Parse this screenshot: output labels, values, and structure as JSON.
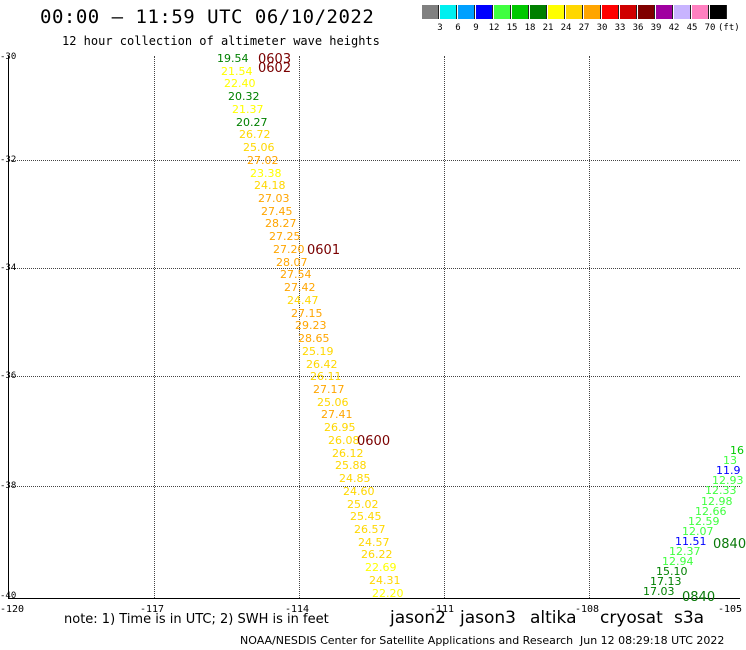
{
  "header": {
    "title": "00:00 – 11:59 UTC 06/10/2022",
    "subtitle": "12 hour collection of altimeter wave heights"
  },
  "color_scale": {
    "colors": [
      "#808080",
      "#00f0f0",
      "#00a0ff",
      "#0000ff",
      "#40ff40",
      "#00c800",
      "#008000",
      "#ffff00",
      "#ffd700",
      "#ffa500",
      "#ff0000",
      "#d00000",
      "#800000",
      "#a000a0",
      "#c8b4ff",
      "#ff80c0",
      "#000000"
    ],
    "labels": [
      "3",
      "6",
      "9",
      "12",
      "15",
      "18",
      "21",
      "24",
      "27",
      "30",
      "33",
      "36",
      "39",
      "42",
      "45",
      "70",
      "(ft)"
    ]
  },
  "axes": {
    "y_ticks": [
      "-30",
      "-32",
      "-34",
      "-36",
      "-38",
      "-40"
    ],
    "x_ticks": [
      "-120",
      "-117",
      "-114",
      "-111",
      "-108",
      "-105"
    ]
  },
  "track_labels": [
    {
      "text": "0603",
      "color": "#7a0000"
    },
    {
      "text": "0602",
      "color": "#7a0000"
    },
    {
      "text": "0601",
      "color": "#7a0000"
    },
    {
      "text": "0600",
      "color": "#7a0000"
    },
    {
      "text": "0840",
      "color": "#0a7a0a"
    },
    {
      "text": "0840",
      "color": "#0a7a0a"
    }
  ],
  "points_main": [
    {
      "v": "19.54",
      "c": "#008000"
    },
    {
      "v": "21.54",
      "c": "#ffff00"
    },
    {
      "v": "22.40",
      "c": "#ffff00"
    },
    {
      "v": "20.32",
      "c": "#008000"
    },
    {
      "v": "21.37",
      "c": "#ffff00"
    },
    {
      "v": "20.27",
      "c": "#008000"
    },
    {
      "v": "26.72",
      "c": "#ffd700"
    },
    {
      "v": "25.06",
      "c": "#ffd700"
    },
    {
      "v": "27.02",
      "c": "#ffa500"
    },
    {
      "v": "23.38",
      "c": "#ffff00"
    },
    {
      "v": "24.18",
      "c": "#ffd700"
    },
    {
      "v": "27.03",
      "c": "#ffa500"
    },
    {
      "v": "27.45",
      "c": "#ffa500"
    },
    {
      "v": "28.27",
      "c": "#ffa500"
    },
    {
      "v": "27.25",
      "c": "#ffa500"
    },
    {
      "v": "27.20",
      "c": "#ffa500"
    },
    {
      "v": "28.07",
      "c": "#ffa500"
    },
    {
      "v": "27.54",
      "c": "#ffa500"
    },
    {
      "v": "27.42",
      "c": "#ffa500"
    },
    {
      "v": "24.47",
      "c": "#ffd700"
    },
    {
      "v": "27.15",
      "c": "#ffa500"
    },
    {
      "v": "29.23",
      "c": "#ffa500"
    },
    {
      "v": "28.65",
      "c": "#ffa500"
    },
    {
      "v": "25.19",
      "c": "#ffd700"
    },
    {
      "v": "26.42",
      "c": "#ffd700"
    },
    {
      "v": "26.11",
      "c": "#ffd700"
    },
    {
      "v": "27.17",
      "c": "#ffa500"
    },
    {
      "v": "25.06",
      "c": "#ffd700"
    },
    {
      "v": "27.41",
      "c": "#ffa500"
    },
    {
      "v": "26.95",
      "c": "#ffd700"
    },
    {
      "v": "26.08",
      "c": "#ffd700"
    },
    {
      "v": "26.12",
      "c": "#ffd700"
    },
    {
      "v": "25.88",
      "c": "#ffd700"
    },
    {
      "v": "24.85",
      "c": "#ffd700"
    },
    {
      "v": "24.60",
      "c": "#ffd700"
    },
    {
      "v": "25.02",
      "c": "#ffd700"
    },
    {
      "v": "25.45",
      "c": "#ffd700"
    },
    {
      "v": "26.57",
      "c": "#ffd700"
    },
    {
      "v": "24.57",
      "c": "#ffd700"
    },
    {
      "v": "26.22",
      "c": "#ffd700"
    },
    {
      "v": "22.69",
      "c": "#ffff00"
    },
    {
      "v": "24.31",
      "c": "#ffd700"
    },
    {
      "v": "22.20",
      "c": "#ffff00"
    }
  ],
  "points_right": [
    {
      "v": "16",
      "c": "#00c800"
    },
    {
      "v": "13",
      "c": "#40ff40"
    },
    {
      "v": "11.9",
      "c": "#0000ff"
    },
    {
      "v": "12.93",
      "c": "#40ff40"
    },
    {
      "v": "12.33",
      "c": "#40ff40"
    },
    {
      "v": "12.98",
      "c": "#40ff40"
    },
    {
      "v": "12.66",
      "c": "#40ff40"
    },
    {
      "v": "12.59",
      "c": "#40ff40"
    },
    {
      "v": "12.07",
      "c": "#40ff40"
    },
    {
      "v": "11.51",
      "c": "#0000ff"
    },
    {
      "v": "12.37",
      "c": "#40ff40"
    },
    {
      "v": "12.94",
      "c": "#40ff40"
    },
    {
      "v": "15.10",
      "c": "#008000"
    },
    {
      "v": "17.13",
      "c": "#008000"
    },
    {
      "v": "17.03",
      "c": "#008000"
    }
  ],
  "footer": {
    "note": "note: 1) Time is in UTC; 2) SWH is in feet",
    "satellites": [
      {
        "name": "jason2",
        "color": "#0000ff"
      },
      {
        "name": "jason3",
        "color": "#008000"
      },
      {
        "name": "altika",
        "color": "#ffa500"
      },
      {
        "name": "cryosat",
        "color": "#ff0000"
      },
      {
        "name": "s3a",
        "color": "#800000"
      }
    ],
    "credit": "NOAA/NESDIS Center for Satellite Applications and Research",
    "timestamp": "Jun 12 08:29:18 UTC 2022"
  }
}
